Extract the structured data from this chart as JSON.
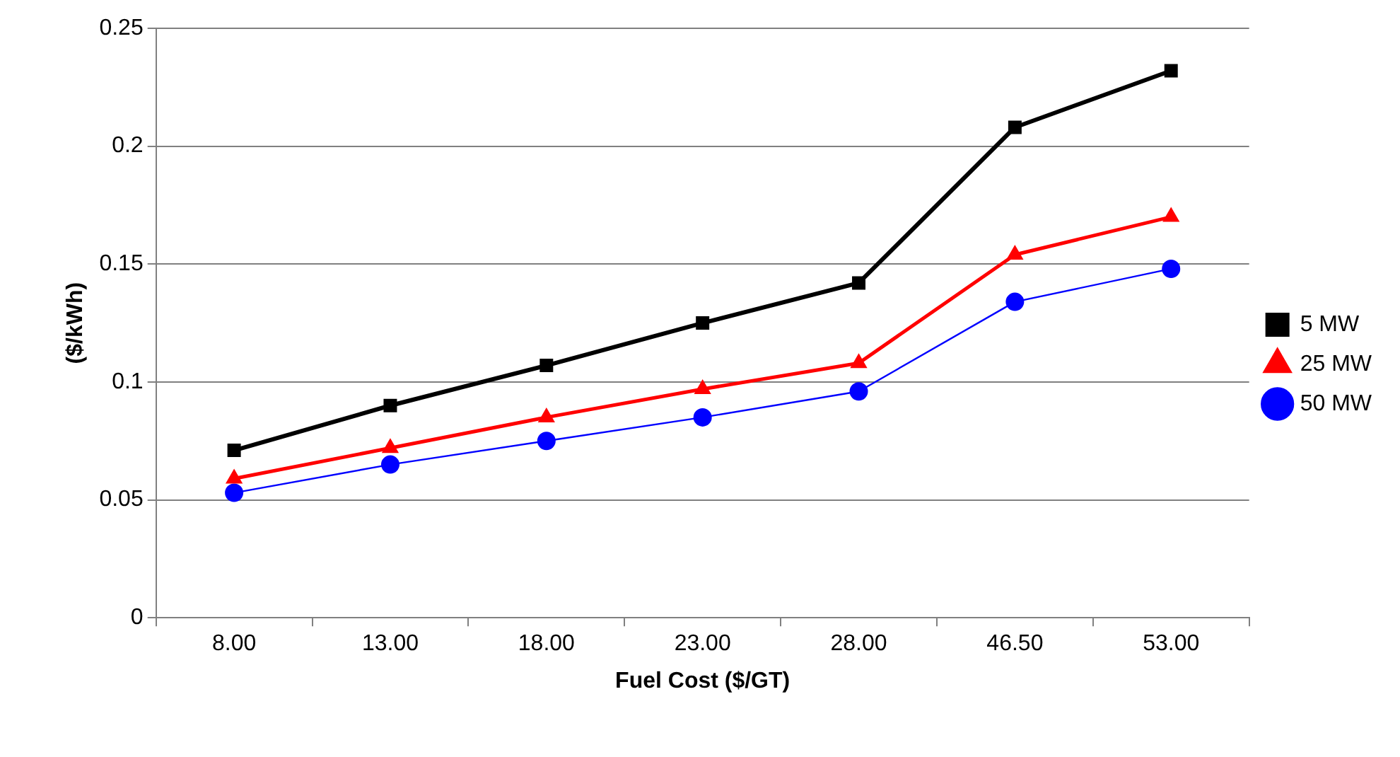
{
  "chart_data": {
    "type": "line",
    "xlabel": "Fuel Cost ($/GT)",
    "ylabel": "($/kWh)",
    "categories": [
      "8.00",
      "13.00",
      "18.00",
      "23.00",
      "28.00",
      "46.50",
      "53.00"
    ],
    "series": [
      {
        "name": "5 MW",
        "color": "#000000",
        "marker": "square",
        "values": [
          0.071,
          0.09,
          0.107,
          0.125,
          0.142,
          0.208,
          0.232
        ]
      },
      {
        "name": "25 MW",
        "color": "#ff0000",
        "marker": "triangle",
        "values": [
          0.059,
          0.072,
          0.085,
          0.097,
          0.108,
          0.154,
          0.17
        ]
      },
      {
        "name": "50 MW",
        "color": "#0000ff",
        "marker": "circle",
        "values": [
          0.053,
          0.065,
          0.075,
          0.085,
          0.096,
          0.134,
          0.148
        ]
      }
    ],
    "ylim": [
      0,
      0.25
    ],
    "yticks": [
      0,
      0.05,
      0.1,
      0.15,
      0.2,
      0.25
    ],
    "grid": "y",
    "legend": "right"
  }
}
